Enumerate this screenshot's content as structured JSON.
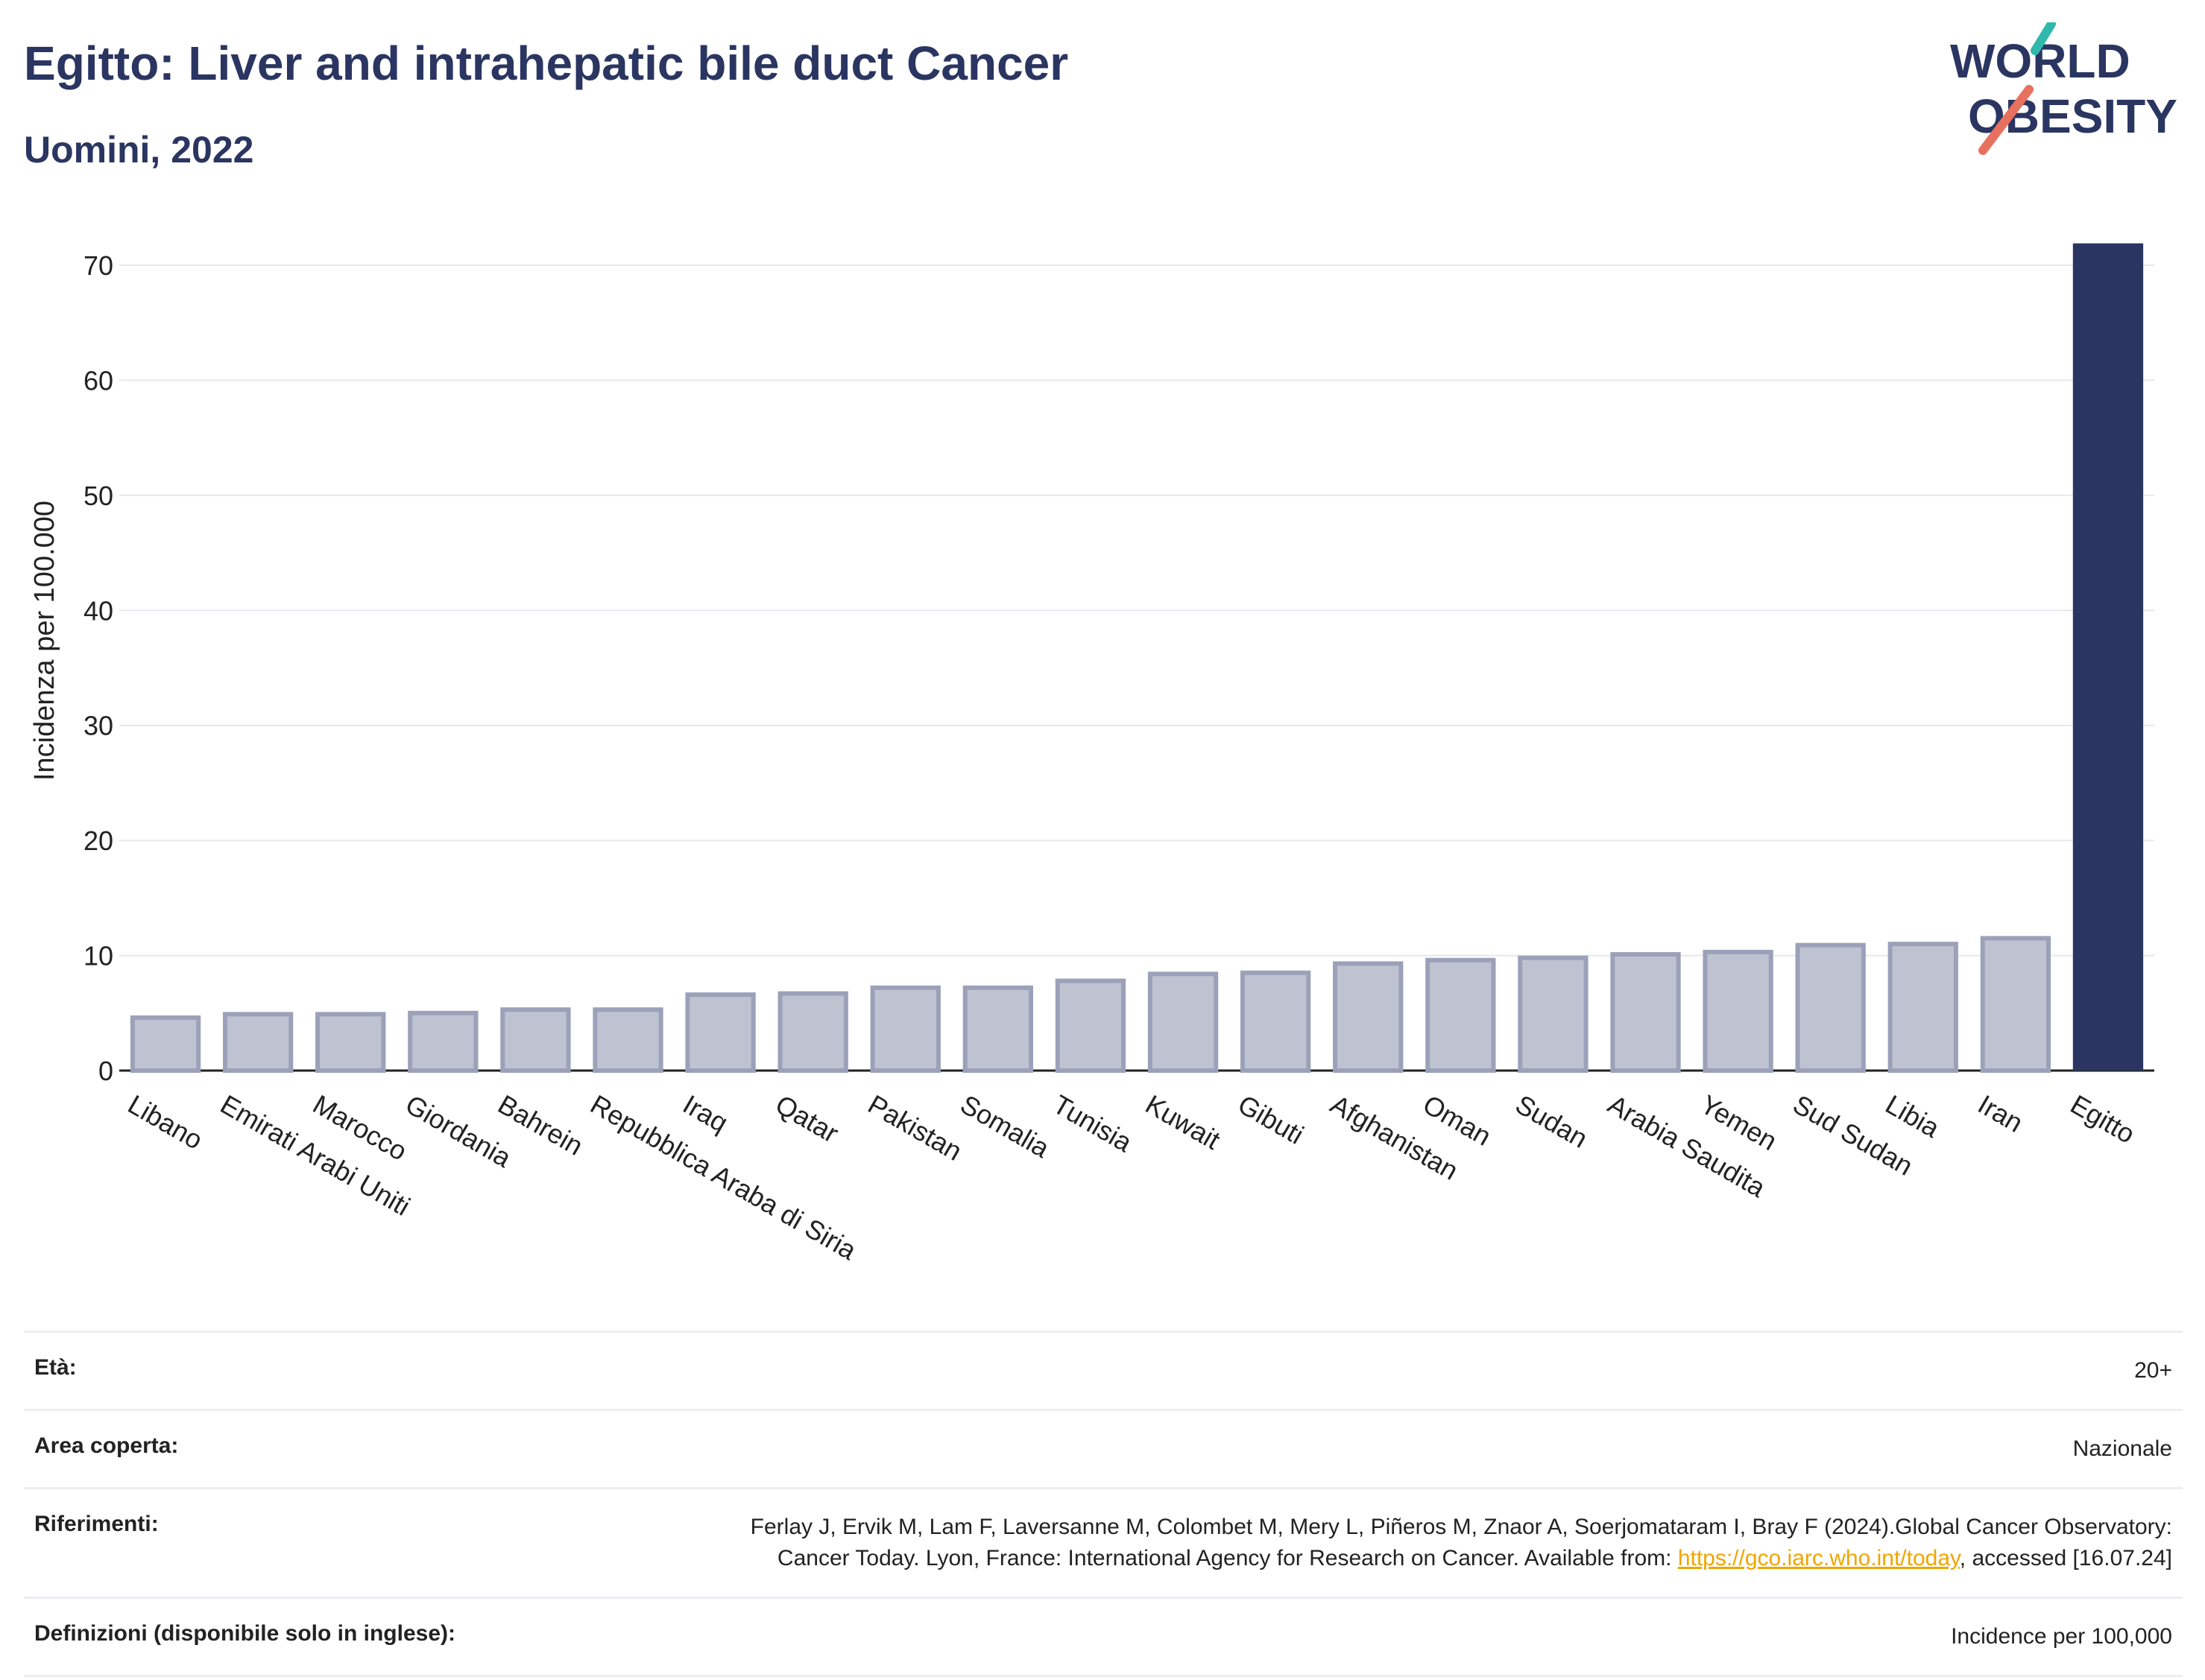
{
  "header": {
    "title": "Egitto: Liver and intrahepatic bile duct Cancer",
    "subtitle": "Uomini, 2022",
    "logo_line1": "WORLD",
    "logo_line2": "OBESITY"
  },
  "colors": {
    "accent": "#2a3561",
    "bar_other": "#bfc3d1",
    "bar_other_border": "#9ba1b8",
    "logo_teal": "#2fb8ac",
    "logo_coral": "#e8705f",
    "link": "#f0a500"
  },
  "chart_data": {
    "type": "bar",
    "title": "Egitto: Liver and intrahepatic bile duct Cancer",
    "subtitle": "Uomini, 2022",
    "xlabel": "",
    "ylabel": "Incidenza per 100.000",
    "ylim": [
      0,
      72
    ],
    "yticks": [
      0,
      10,
      20,
      30,
      40,
      50,
      60,
      70
    ],
    "grid": true,
    "legend": "none",
    "highlight": "Egitto",
    "categories": [
      "Libano",
      "Emirati Arabi Uniti",
      "Marocco",
      "Giordania",
      "Bahrein",
      "Repubblica Araba di Siria",
      "Iraq",
      "Qatar",
      "Pakistan",
      "Somalia",
      "Tunisia",
      "Kuwait",
      "Gibuti",
      "Afghanistan",
      "Oman",
      "Sudan",
      "Arabia Saudita",
      "Yemen",
      "Sud Sudan",
      "Libia",
      "Iran",
      "Egitto"
    ],
    "values": [
      4.6,
      4.9,
      4.9,
      5.0,
      5.3,
      5.3,
      6.6,
      6.7,
      7.2,
      7.2,
      7.8,
      8.4,
      8.5,
      9.3,
      9.6,
      9.8,
      10.1,
      10.3,
      10.9,
      11.0,
      11.5,
      71.9
    ]
  },
  "info": {
    "age_label": "Età:",
    "age_value": "20+",
    "area_label": "Area coperta:",
    "area_value": "Nazionale",
    "refs_label": "Riferimenti:",
    "refs_value_pre": "Ferlay J, Ervik M, Lam F, Laversanne M, Colombet M, Mery L, Piñeros M, Znaor A, Soerjomataram I, Bray F (2024).Global Cancer Observatory: Cancer Today. Lyon, France: International Agency for Research on Cancer. Available from: ",
    "refs_link": "https://gco.iarc.who.int/today",
    "refs_value_post": ", accessed [16.07.24]",
    "defs_label": "Definizioni (disponibile solo in inglese):",
    "defs_value": "Incidence per 100,000"
  }
}
